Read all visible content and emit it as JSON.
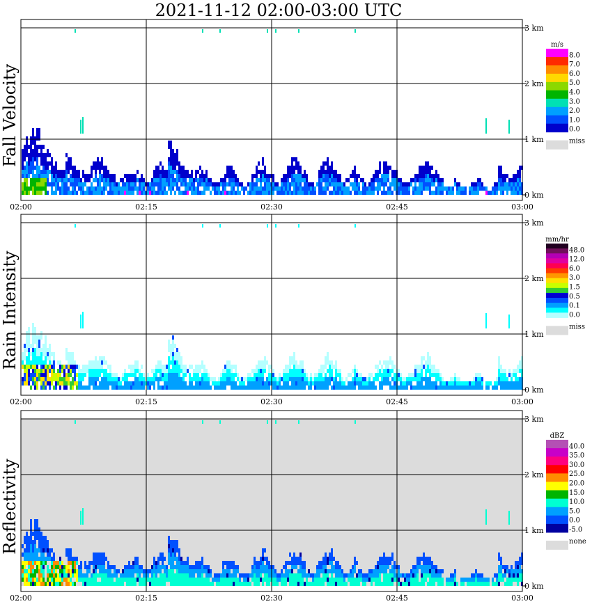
{
  "title": "2021-11-12   02:00-03:00 UTC",
  "time_ticks": [
    "02:00",
    "02:15",
    "02:30",
    "02:45",
    "03:00"
  ],
  "height_ticks": [
    "0 km",
    "1 km",
    "2 km",
    "3 km"
  ],
  "chart_data": [
    {
      "type": "heatmap",
      "title": "Fall Velocity",
      "unit": "m/s",
      "missing_label": "miss",
      "background": "#ffffff",
      "colorbar_labels": [
        "8.0",
        "7.0",
        "6.0",
        "5.0",
        "4.0",
        "3.0",
        "2.0",
        "1.0",
        "0.0"
      ],
      "colorbar_colors": [
        "#ff00ff",
        "#ff2a00",
        "#ff8c00",
        "#ffd800",
        "#8cd800",
        "#00b400",
        "#00e0b4",
        "#00a0ff",
        "#0050ff",
        "#0000cc"
      ],
      "missing_color": "#dcdcdc",
      "xlim": [
        "02:00",
        "03:00"
      ],
      "ylim_km": [
        0,
        3.1
      ]
    },
    {
      "type": "heatmap",
      "title": "Rain Intensity",
      "unit": "mm/hr",
      "missing_label": "miss",
      "background": "#ffffff",
      "colorbar_labels": [
        "48.0",
        "12.0",
        "6.0",
        "3.0",
        "1.5",
        "0.5",
        "0.1",
        "0.0"
      ],
      "colorbar_colors": [
        "#200020",
        "#70105a",
        "#b400b4",
        "#e000a0",
        "#ff0050",
        "#ff3c00",
        "#ff9600",
        "#ffe000",
        "#c8ff00",
        "#32cd32",
        "#0000d2",
        "#0050ff",
        "#00a0ff",
        "#00ffff",
        "#b4ffff"
      ],
      "missing_color": "#dcdcdc",
      "xlim": [
        "02:00",
        "03:00"
      ],
      "ylim_km": [
        0,
        3.1
      ]
    },
    {
      "type": "heatmap",
      "title": "Reflectivity",
      "unit": "dBZ",
      "missing_label": "none",
      "background": "#dcdcdc",
      "colorbar_labels": [
        "40.0",
        "35.0",
        "30.0",
        "25.0",
        "20.0",
        "15.0",
        "10.0",
        "5.0",
        "0.0",
        "-5.0"
      ],
      "colorbar_colors": [
        "#b450b4",
        "#c800c8",
        "#ff0080",
        "#ff0000",
        "#ff8c00",
        "#ffff00",
        "#00b400",
        "#00ffd2",
        "#00a0ff",
        "#0050ff",
        "#0000a0"
      ],
      "missing_color": "#dcdcdc",
      "xlim": [
        "02:00",
        "03:00"
      ],
      "ylim_km": [
        0,
        3.1
      ]
    }
  ]
}
